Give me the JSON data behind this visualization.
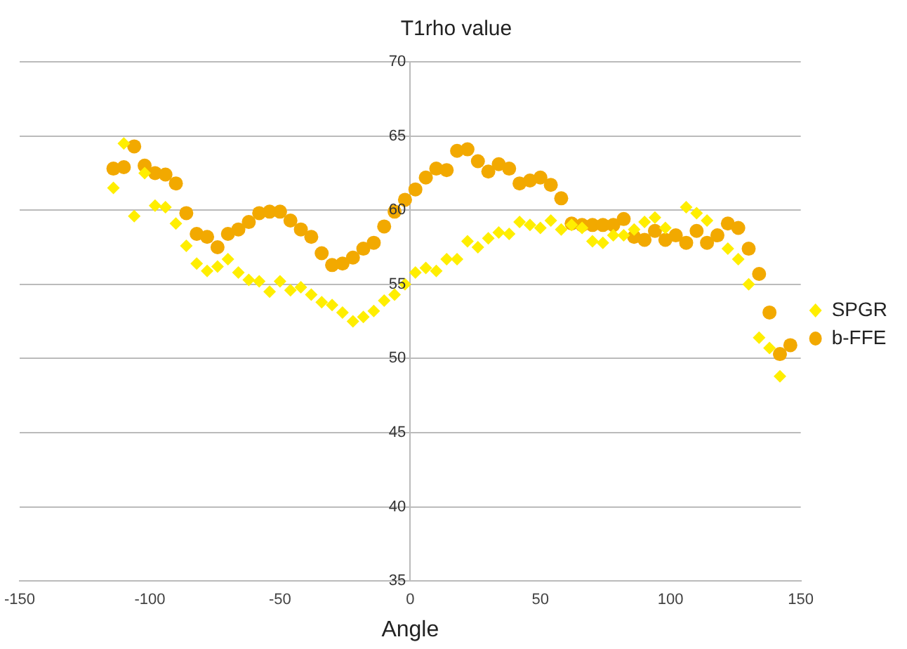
{
  "chart_data": {
    "type": "scatter",
    "title": "T1rho value",
    "xlabel": "Angle",
    "xlim": [
      -150,
      150
    ],
    "xticks": [
      -150,
      -100,
      -50,
      0,
      50,
      100,
      150
    ],
    "ylim": [
      35,
      70
    ],
    "yticks": [
      35,
      40,
      45,
      50,
      55,
      60,
      65,
      70
    ],
    "grid": "y",
    "legend": "right",
    "series": [
      {
        "name": "SPGR",
        "color": "#ffee00",
        "marker": "diamond",
        "x": [
          -114,
          -110,
          -106,
          -102,
          -98,
          -94,
          -90,
          -86,
          -82,
          -78,
          -74,
          -70,
          -66,
          -62,
          -58,
          -54,
          -50,
          -46,
          -42,
          -38,
          -34,
          -30,
          -26,
          -22,
          -18,
          -14,
          -10,
          -6,
          -2,
          2,
          6,
          10,
          14,
          18,
          22,
          26,
          30,
          34,
          38,
          42,
          46,
          50,
          54,
          58,
          62,
          66,
          70,
          74,
          78,
          82,
          86,
          90,
          94,
          98,
          106,
          110,
          114,
          122,
          126,
          130,
          134,
          138,
          142
        ],
        "values": [
          61.5,
          64.5,
          59.6,
          62.5,
          60.3,
          60.2,
          59.1,
          57.6,
          56.4,
          55.9,
          56.2,
          56.7,
          55.8,
          55.3,
          55.2,
          54.5,
          55.2,
          54.6,
          54.8,
          54.3,
          53.8,
          53.6,
          53.1,
          52.5,
          52.8,
          53.2,
          53.9,
          54.3,
          55.0,
          55.8,
          56.1,
          55.9,
          56.7,
          56.7,
          57.9,
          57.5,
          58.1,
          58.5,
          58.4,
          59.2,
          59.0,
          58.8,
          59.3,
          58.7,
          59.0,
          58.8,
          57.9,
          57.8,
          58.3,
          58.3,
          58.7,
          59.2,
          59.5,
          58.8,
          60.2,
          59.8,
          59.3,
          57.4,
          56.7,
          55.0,
          51.4,
          50.7,
          48.8
        ]
      },
      {
        "name": "b-FFE",
        "color": "#f2a900",
        "marker": "circle",
        "x": [
          -114,
          -110,
          -106,
          -102,
          -98,
          -94,
          -90,
          -86,
          -82,
          -78,
          -74,
          -70,
          -66,
          -62,
          -58,
          -54,
          -50,
          -46,
          -42,
          -38,
          -34,
          -30,
          -26,
          -22,
          -18,
          -14,
          -10,
          -6,
          -2,
          2,
          6,
          10,
          14,
          18,
          22,
          26,
          30,
          34,
          38,
          42,
          46,
          50,
          54,
          58,
          62,
          66,
          70,
          74,
          78,
          82,
          86,
          90,
          94,
          98,
          102,
          106,
          110,
          114,
          118,
          122,
          126,
          130,
          134,
          138,
          142,
          146
        ],
        "values": [
          62.8,
          62.9,
          64.3,
          63.0,
          62.5,
          62.4,
          61.8,
          59.8,
          58.4,
          58.2,
          57.5,
          58.4,
          58.7,
          59.2,
          59.8,
          59.9,
          59.9,
          59.3,
          58.7,
          58.2,
          57.1,
          56.3,
          56.4,
          56.8,
          57.4,
          57.8,
          58.9,
          59.9,
          60.7,
          61.4,
          62.2,
          62.8,
          62.7,
          64.0,
          64.1,
          63.3,
          62.6,
          63.1,
          62.8,
          61.8,
          62.0,
          62.2,
          61.7,
          60.8,
          59.1,
          59.0,
          59.0,
          59.0,
          59.0,
          59.4,
          58.2,
          58.0,
          58.6,
          58.0,
          58.3,
          57.8,
          58.6,
          57.8,
          58.3,
          59.1,
          58.8,
          57.4,
          55.7,
          53.1,
          50.3,
          50.9
        ]
      }
    ]
  }
}
